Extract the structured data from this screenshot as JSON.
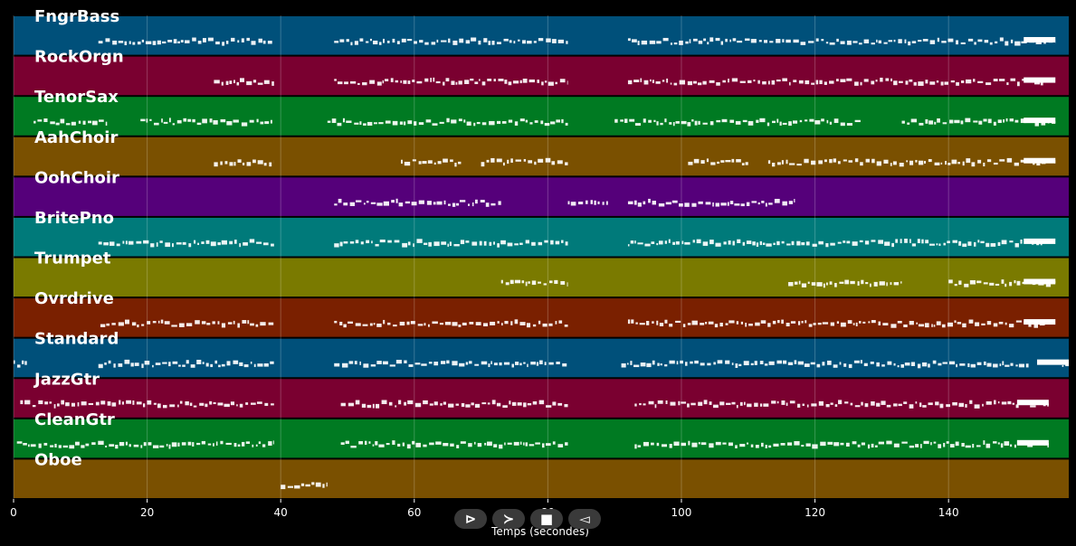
{
  "chart_data": {
    "type": "piano-roll",
    "title": "",
    "xlabel": "Temps (secondes)",
    "ylabel": "",
    "xlim": [
      0,
      158
    ],
    "xticks": [
      0,
      20,
      40,
      60,
      80,
      100,
      120,
      140
    ],
    "grid": true,
    "tracks": [
      {
        "name": "FngrBass",
        "color": "#00507a",
        "segments": [
          [
            12.7,
            39
          ],
          [
            48,
            83
          ],
          [
            92,
            156
          ]
        ]
      },
      {
        "name": "RockOrgn",
        "color": "#7a0030",
        "segments": [
          [
            30,
            39
          ],
          [
            48,
            83
          ],
          [
            92,
            156
          ]
        ]
      },
      {
        "name": "TenorSax",
        "color": "#007a22",
        "segments": [
          [
            3,
            14
          ],
          [
            19,
            39
          ],
          [
            47,
            83
          ],
          [
            90,
            127
          ],
          [
            133,
            156
          ]
        ]
      },
      {
        "name": "AahChoir",
        "color": "#7a5000",
        "segments": [
          [
            30,
            39
          ],
          [
            58,
            67
          ],
          [
            70,
            83
          ],
          [
            101,
            110
          ],
          [
            113,
            156
          ]
        ]
      },
      {
        "name": "OohChoir",
        "color": "#55007a",
        "segments": [
          [
            48,
            73
          ],
          [
            83,
            89
          ],
          [
            92,
            117
          ]
        ]
      },
      {
        "name": "BritePno",
        "color": "#007a7a",
        "segments": [
          [
            12.7,
            39
          ],
          [
            48,
            83
          ],
          [
            92,
            156
          ]
        ]
      },
      {
        "name": "Trumpet",
        "color": "#7a7a00",
        "segments": [
          [
            73,
            83
          ],
          [
            116,
            133
          ],
          [
            140,
            156
          ]
        ]
      },
      {
        "name": "Ovrdrive",
        "color": "#7a2000",
        "segments": [
          [
            13,
            39
          ],
          [
            48,
            83
          ],
          [
            92,
            156
          ]
        ]
      },
      {
        "name": "Standard",
        "color": "#00507a",
        "segments": [
          [
            0,
            2
          ],
          [
            12.7,
            39
          ],
          [
            48,
            83
          ],
          [
            91,
            152
          ],
          [
            157,
            158
          ]
        ]
      },
      {
        "name": "JazzGtr",
        "color": "#7a0030",
        "segments": [
          [
            1,
            39
          ],
          [
            49,
            83
          ],
          [
            93,
            155
          ]
        ]
      },
      {
        "name": "CleanGtr",
        "color": "#007a22",
        "segments": [
          [
            0.5,
            39
          ],
          [
            49,
            83
          ],
          [
            93,
            155
          ]
        ]
      },
      {
        "name": "Oboe",
        "color": "#7a5000",
        "segments": [
          [
            40,
            47
          ]
        ]
      }
    ]
  },
  "controls": {
    "play_glyph": "⊳",
    "forward_glyph": "≻",
    "stop_glyph": "■",
    "back_glyph": "◅"
  }
}
